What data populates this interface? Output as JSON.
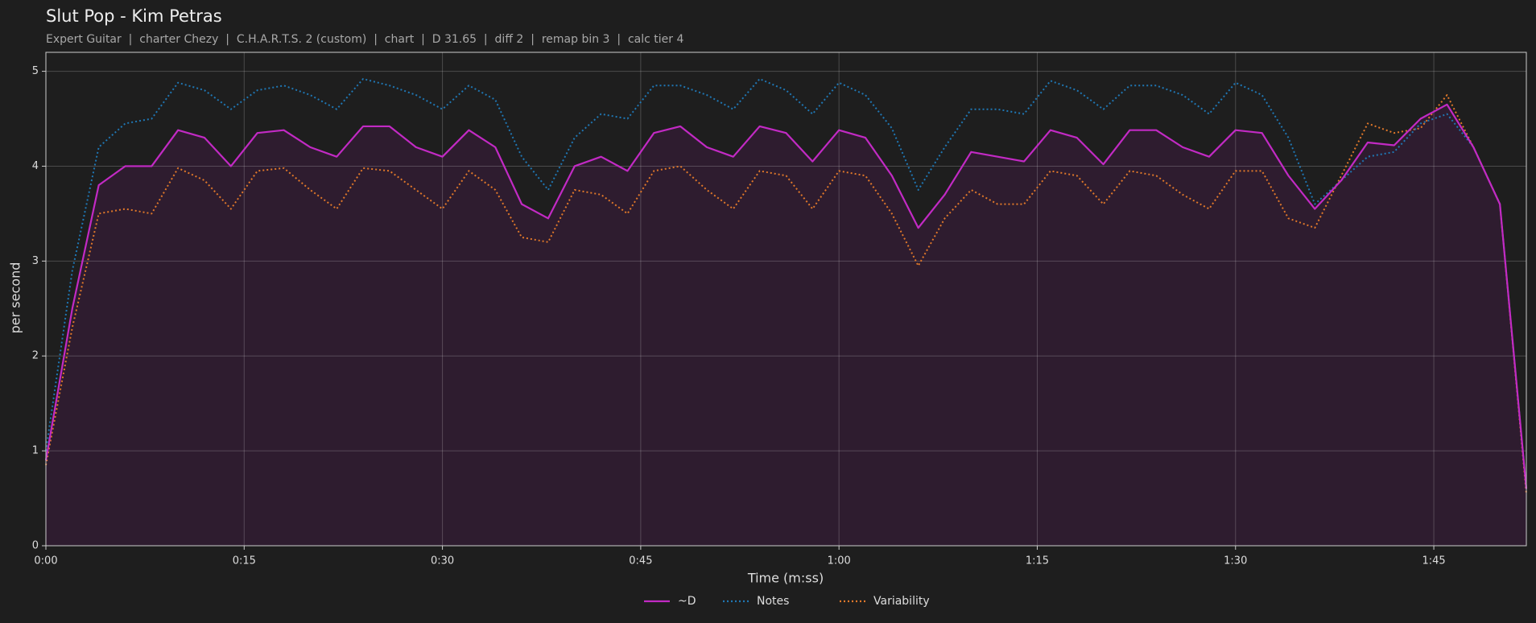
{
  "chart_data": {
    "type": "line",
    "title": "Slut Pop - Kim Petras",
    "subtitle": "Expert Guitar  |  charter Chezy  |  C.H.A.R.T.S. 2 (custom)  |  chart  |  D 31.65  |  diff 2  |  remap bin 3  |  calc tier 4",
    "xlabel": "Time (m:ss)",
    "ylabel": "per second",
    "x": [
      0,
      2,
      4,
      6,
      8,
      10,
      12,
      14,
      16,
      18,
      20,
      22,
      24,
      26,
      28,
      30,
      32,
      34,
      36,
      38,
      40,
      42,
      44,
      46,
      48,
      50,
      52,
      54,
      56,
      58,
      60,
      62,
      64,
      66,
      68,
      70,
      72,
      74,
      76,
      78,
      80,
      82,
      84,
      86,
      88,
      90,
      92,
      94,
      96,
      98,
      100,
      102,
      104,
      106,
      108,
      110,
      112
    ],
    "series": [
      {
        "name": "~D",
        "color": "#c22ac4",
        "dash": "solid",
        "fill": "#2e1c2f",
        "values": [
          0.9,
          2.5,
          3.8,
          4.0,
          4.0,
          4.38,
          4.3,
          4.0,
          4.35,
          4.38,
          4.2,
          4.1,
          4.42,
          4.42,
          4.2,
          4.1,
          4.38,
          4.2,
          3.6,
          3.45,
          4.0,
          4.1,
          3.95,
          4.35,
          4.42,
          4.2,
          4.1,
          4.42,
          4.35,
          4.05,
          4.38,
          4.3,
          3.9,
          3.35,
          3.7,
          4.15,
          4.1,
          4.05,
          4.38,
          4.3,
          4.02,
          4.38,
          4.38,
          4.2,
          4.1,
          4.38,
          4.35,
          3.9,
          3.55,
          3.85,
          4.25,
          4.22,
          4.5,
          4.65,
          4.2,
          3.6,
          0.6
        ]
      },
      {
        "name": "Notes",
        "color": "#1f77b4",
        "dash": "dotted",
        "values": [
          1.0,
          2.9,
          4.2,
          4.45,
          4.5,
          4.88,
          4.8,
          4.6,
          4.8,
          4.85,
          4.75,
          4.6,
          4.92,
          4.85,
          4.75,
          4.6,
          4.85,
          4.7,
          4.1,
          3.75,
          4.3,
          4.55,
          4.5,
          4.85,
          4.85,
          4.75,
          4.6,
          4.92,
          4.8,
          4.55,
          4.88,
          4.75,
          4.4,
          3.75,
          4.2,
          4.6,
          4.6,
          4.55,
          4.9,
          4.8,
          4.6,
          4.85,
          4.85,
          4.75,
          4.55,
          4.88,
          4.75,
          4.3,
          3.6,
          3.85,
          4.1,
          4.15,
          4.45,
          4.55,
          4.2,
          3.6,
          0.6
        ]
      },
      {
        "name": "Variability",
        "color": "#e0782a",
        "dash": "dotted",
        "values": [
          0.85,
          2.3,
          3.5,
          3.55,
          3.5,
          3.98,
          3.85,
          3.55,
          3.95,
          3.98,
          3.75,
          3.55,
          3.98,
          3.95,
          3.75,
          3.55,
          3.95,
          3.75,
          3.25,
          3.2,
          3.75,
          3.7,
          3.5,
          3.95,
          4.0,
          3.75,
          3.55,
          3.95,
          3.9,
          3.55,
          3.95,
          3.9,
          3.5,
          2.95,
          3.45,
          3.75,
          3.6,
          3.6,
          3.95,
          3.9,
          3.6,
          3.95,
          3.9,
          3.7,
          3.55,
          3.95,
          3.95,
          3.45,
          3.35,
          3.9,
          4.45,
          4.35,
          4.4,
          4.75,
          4.2,
          3.6,
          0.55
        ]
      }
    ],
    "xlim": [
      0,
      112
    ],
    "ylim": [
      0,
      5.2
    ],
    "xticks": [
      {
        "value": 0,
        "label": "0:00"
      },
      {
        "value": 15,
        "label": "0:15"
      },
      {
        "value": 30,
        "label": "0:30"
      },
      {
        "value": 45,
        "label": "0:45"
      },
      {
        "value": 60,
        "label": "1:00"
      },
      {
        "value": 75,
        "label": "1:15"
      },
      {
        "value": 90,
        "label": "1:30"
      },
      {
        "value": 105,
        "label": "1:45"
      }
    ],
    "yticks": [
      0,
      1,
      2,
      3,
      4,
      5
    ],
    "grid": true,
    "legend": "bottom"
  }
}
